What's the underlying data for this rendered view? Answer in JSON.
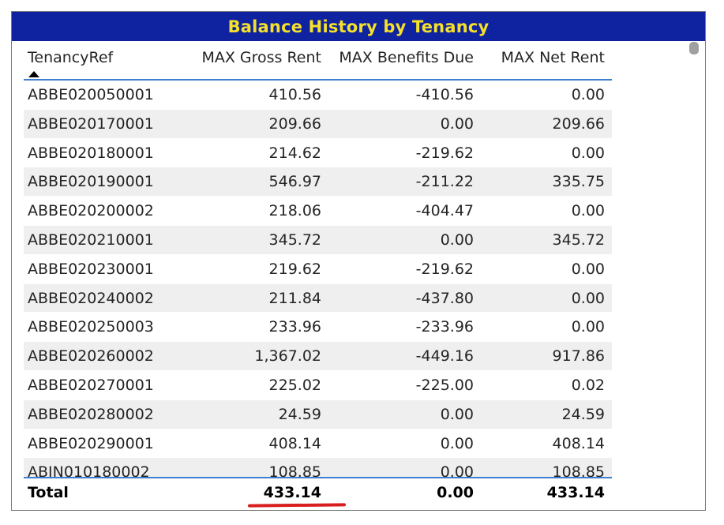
{
  "visual": {
    "title": "Balance History by Tenancy",
    "title_bg_color": "#0f23a0",
    "title_text_color": "#f5e12a",
    "sort_icon": "sort-ascending-icon"
  },
  "table": {
    "columns": [
      "TenancyRef",
      "MAX Gross Rent",
      "MAX Benefits Due",
      "MAX Net Rent"
    ],
    "rows": [
      [
        "ABBE020050001",
        "410.56",
        "-410.56",
        "0.00"
      ],
      [
        "ABBE020170001",
        "209.66",
        "0.00",
        "209.66"
      ],
      [
        "ABBE020180001",
        "214.62",
        "-219.62",
        "0.00"
      ],
      [
        "ABBE020190001",
        "546.97",
        "-211.22",
        "335.75"
      ],
      [
        "ABBE020200002",
        "218.06",
        "-404.47",
        "0.00"
      ],
      [
        "ABBE020210001",
        "345.72",
        "0.00",
        "345.72"
      ],
      [
        "ABBE020230001",
        "219.62",
        "-219.62",
        "0.00"
      ],
      [
        "ABBE020240002",
        "211.84",
        "-437.80",
        "0.00"
      ],
      [
        "ABBE020250003",
        "233.96",
        "-233.96",
        "0.00"
      ],
      [
        "ABBE020260002",
        "1,367.02",
        "-449.16",
        "917.86"
      ],
      [
        "ABBE020270001",
        "225.02",
        "-225.00",
        "0.02"
      ],
      [
        "ABBE020280002",
        "24.59",
        "0.00",
        "24.59"
      ],
      [
        "ABBE020290001",
        "408.14",
        "0.00",
        "408.14"
      ],
      [
        "ABIN010180002",
        "108.85",
        "0.00",
        "108.85"
      ]
    ],
    "total": [
      "Total",
      "433.14",
      "0.00",
      "433.14"
    ],
    "header_border_color": "#3d7fd1",
    "stripe_color": "#efefef",
    "highlight_underline_color": "#d81e1e"
  }
}
